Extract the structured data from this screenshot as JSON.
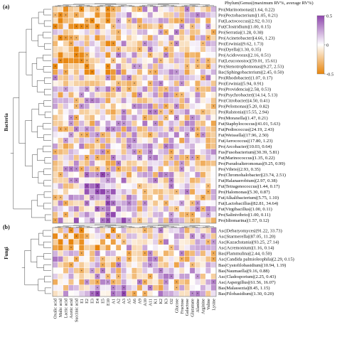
{
  "chart_data": {
    "type": "heatmap",
    "panels": [
      {
        "tag": "(a)",
        "group_label": "Bacteria"
      },
      {
        "tag": "(b)",
        "group_label": "Fungi"
      }
    ],
    "header": "Phylum|Genus|(maximum RV%, average RV%)",
    "colorbar": {
      "ticks": [
        "0.5",
        "0",
        "-0.5"
      ],
      "colors": {
        "high": "#8e44ad",
        "mid": "#ffffff",
        "low": "#e8850c"
      }
    },
    "columns": [
      "Oxalic acid",
      "Malic acid",
      "Lactic acid",
      "Acetic acid",
      "Succinic acid",
      "E1",
      "E2",
      "E3",
      "E4",
      "E5",
      "E10",
      "A1",
      "A2",
      "A3",
      "A5",
      "A6",
      "A9",
      "A10",
      "A11",
      "K1",
      "K2",
      "K3",
      "O2",
      "Glucose",
      "Fructose",
      "Galactose",
      "Glutamate",
      "Alanine",
      "Arginine",
      "Valine",
      "Lysine"
    ],
    "bacteria_rows": [
      "Pro|Marinomonas|(1.64, 0.22)",
      "Pro|Pectobacterium|(1.05, 0.21)",
      "Fut|Lactococcus|(2.92, 0.31)",
      "Fut|Clostridium|(1.00, 0.15)",
      "Pro|Serratia|(1.28, 0.38)",
      "Pro|Acinetobacter|(4.66, 1.23)",
      "Pro|Erwinia|(9.62, 1.73)",
      "Pro|Dyella|(1.30, 0.35)",
      "Pro|Acidovorax|(2.16, 0.51)",
      "Fut|Leuconostoc|(59.01, 15.61)",
      "Pro|Stenotrophomonas|(9.27, 2.53)",
      "Bac|Sphingobacterium|(2.45, 0.50)",
      "Pro|Rhodobacter|(1.07, 0.17)",
      "Pro|Erwinia|(5.94, 0.91)",
      "Pro|Providencia|(2.58, 0.53)",
      "Pro|Psychrobacter|(14.14, 5.13)",
      "Pro|Citrobacter|(4.50, 0.41)",
      "Pro|Pelomonas|(5.20, 0.82)",
      "Pro|Ralstonia|(15.55, 2.94)",
      "Pro|Moraxella|(1.47, 0.21)",
      "Fut|Staphylococcus|(41.01, 5.63)",
      "Fut|Pediococcus|(24.19, 2.43)",
      "Fut|Weissella|(17.96, 2.50)",
      "Fut|Aerococcus|(17.80, 1.23)",
      "Pro|Arcobacter|(10.03, 0.64)",
      "Fus|Fusobacterium|(30.39, 5.81)",
      "Fut|Marinococcus|(1.35, 0.22)",
      "Pro|Pseudoalteromonas|(9.25, 0.99)",
      "Pro|Vibrio|(2.93, 0.35)",
      "Pro|Chromohalobacter|(23.74, 2.51)",
      "Fut|Halanaerobium|(2.97, 0.38)",
      "Fut|Tetragenococcus|(1.44, 0.17)",
      "Pro|Halomonas|(5.30, 0.87)",
      "Fut|Alkalibacterium|(5.75, 1.10)",
      "Fut|Lactobacillus|(82.81, 34.64)",
      "Fut|Virgibacillus|(1.00, 0.11)",
      "Pro|Salinivibrio|(1.00, 0.11)",
      "Pro|Idiomarina|(1.57, 0.12)"
    ],
    "fungi_rows": [
      "Asc|Debaryomyces|(91.22, 33.73)",
      "Asc|Starmerella|(87.05, 11.20)",
      "Asc|Kazachstania|(93.25, 27.14)",
      "Asc|Acremonium|(1.16, 0.14)",
      "Bas|Flammulina|(2.44, 0.50)",
      "Asc|Candida palmioleophila|(2.29, 0.15)",
      "Bas|Cystofilobasidium|(10.94, 1.19)",
      "Bas|Naumaella|(9.16, 0.88)",
      "Asc|Cladosporium|(2.25, 0.43)",
      "Asc|Aspergillus|(61.56, 16.07)",
      "Bas|Malassezia|(8.45, 1.15)",
      "Bas|Filobasidium|(1.30, 0.20)"
    ]
  }
}
